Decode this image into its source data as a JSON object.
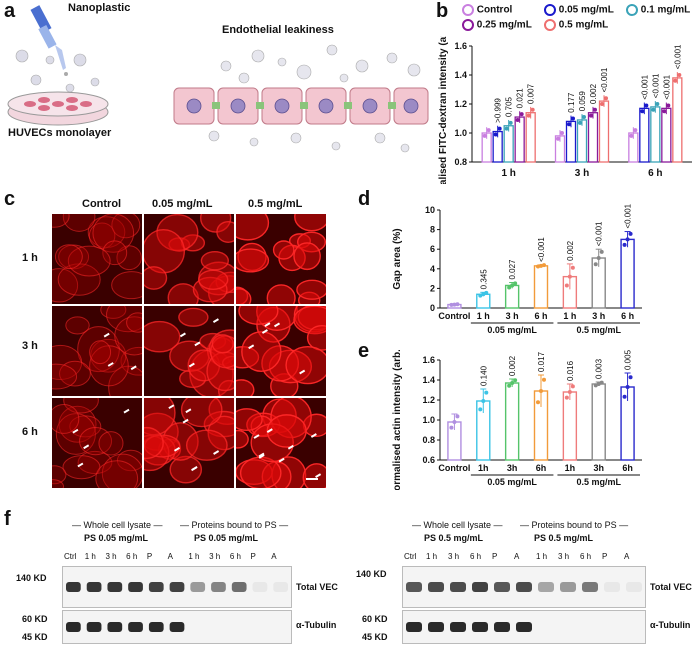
{
  "panel_a": {
    "letter": "a",
    "nanoplastic_label": "Nanoplastic",
    "leakiness_label": "Endothelial leakiness",
    "monolayer_label": "HUVECs monolayer"
  },
  "panel_c": {
    "letter": "c",
    "columns": [
      "Control",
      "0.05 mg/mL",
      "0.5 mg/mL"
    ],
    "rows": [
      "1 h",
      "3 h",
      "6 h"
    ]
  },
  "colors": {
    "control": "#c97fe0",
    "c005": "#1a1acc",
    "c01": "#3aa3b8",
    "c025": "#8a1a9a",
    "c05": "#ee6f6f",
    "d_bars": [
      "#b08fe0",
      "#3cc4e6",
      "#55c46a",
      "#f29b3a",
      "#ef7b7b",
      "#888888",
      "#2a2acc"
    ]
  },
  "chart_data": [
    {
      "panel": "b",
      "type": "bar",
      "ylabel": "Normalised FITC-dextran intensity (arb.units)",
      "ylim": [
        0.8,
        1.6
      ],
      "yticks": [
        "0.8",
        "1.0",
        "1.2",
        "1.4",
        "1.6"
      ],
      "categories": [
        "1 h",
        "3 h",
        "6 h"
      ],
      "series": [
        {
          "name": "Control",
          "values": [
            1.0,
            0.98,
            1.0
          ],
          "pvalues": [
            "",
            "",
            ""
          ]
        },
        {
          "name": "0.05 mg/mL",
          "values": [
            1.01,
            1.08,
            1.17
          ],
          "pvalues": [
            ">0.999",
            "0.177",
            "<0.001"
          ]
        },
        {
          "name": "0.1 mg/mL",
          "values": [
            1.05,
            1.09,
            1.18
          ],
          "pvalues": [
            "0.705",
            "0.059",
            "<0.001"
          ]
        },
        {
          "name": "0.25 mg/mL",
          "values": [
            1.11,
            1.14,
            1.17
          ],
          "pvalues": [
            "0.021",
            "0.002",
            "<0.001"
          ]
        },
        {
          "name": "0.5 mg/mL",
          "values": [
            1.14,
            1.22,
            1.38
          ],
          "pvalues": [
            "0.007",
            "<0.001",
            "<0.001"
          ]
        }
      ]
    },
    {
      "panel": "d",
      "type": "bar",
      "ylabel": "Gap area (%)",
      "ylim": [
        0,
        10
      ],
      "yticks": [
        "0",
        "2",
        "4",
        "6",
        "8",
        "10"
      ],
      "categories": [
        "Control",
        "1 h",
        "3 h",
        "6 h",
        "1 h",
        "3 h",
        "6 h"
      ],
      "groups": [
        "0.05 mg/mL",
        "0.5 mg/mL"
      ],
      "values": [
        0.35,
        1.4,
        2.3,
        4.3,
        3.2,
        5.1,
        7.0
      ],
      "errors": [
        0.05,
        0.2,
        0.3,
        0.1,
        1.3,
        0.9,
        0.8
      ],
      "pvalues": [
        "",
        "0.345",
        "0.027",
        "<0.001",
        "0.002",
        "<0.001",
        "<0.001"
      ]
    },
    {
      "panel": "e",
      "type": "bar",
      "ylabel": "Normalised actin intensity (arb.units)",
      "ylim": [
        0.6,
        1.6
      ],
      "yticks": [
        "0.6",
        "0.8",
        "1.0",
        "1.2",
        "1.4",
        "1.6"
      ],
      "categories": [
        "Control",
        "1h",
        "3h",
        "6h",
        "1h",
        "3h",
        "6h"
      ],
      "groups": [
        "0.05 mg/mL",
        "0.5 mg/mL"
      ],
      "values": [
        0.98,
        1.19,
        1.37,
        1.29,
        1.28,
        1.36,
        1.33
      ],
      "errors": [
        0.08,
        0.12,
        0.04,
        0.16,
        0.08,
        0.02,
        0.14
      ],
      "pvalues": [
        "",
        "0.140",
        "0.002",
        "0.017",
        "0.016",
        "0.003",
        "0.005"
      ]
    }
  ],
  "panel_f": {
    "letter": "f",
    "left": {
      "header_wcl": "Whole cell lysate",
      "header_bound": "Proteins bound to PS",
      "sub_wcl": "PS 0.05 mg/mL",
      "sub_bound": "PS 0.05 mg/mL",
      "lanes": [
        "Ctrl",
        "1 h",
        "3 h",
        "6 h",
        "P",
        "A",
        "1 h",
        "3 h",
        "6 h",
        "P",
        "A"
      ],
      "mw_top": "140 KD",
      "mw_mid": "60 KD",
      "mw_bot": "45 KD",
      "band_top": "Total VEC",
      "band_bot": "α-Tubulin"
    },
    "right": {
      "header_wcl": "Whole cell lysate",
      "header_bound": "Proteins bound to PS",
      "sub_wcl": "PS 0.5 mg/mL",
      "sub_bound": "PS 0.5 mg/mL",
      "lanes": [
        "Ctrl",
        "1 h",
        "3 h",
        "6 h",
        "P",
        "A",
        "1 h",
        "3 h",
        "6 h",
        "P",
        "A"
      ],
      "mw_top": "140 KD",
      "mw_mid": "60 KD",
      "mw_bot": "45 KD",
      "band_top": "Total VEC",
      "band_bot": "α-Tubulin"
    }
  }
}
